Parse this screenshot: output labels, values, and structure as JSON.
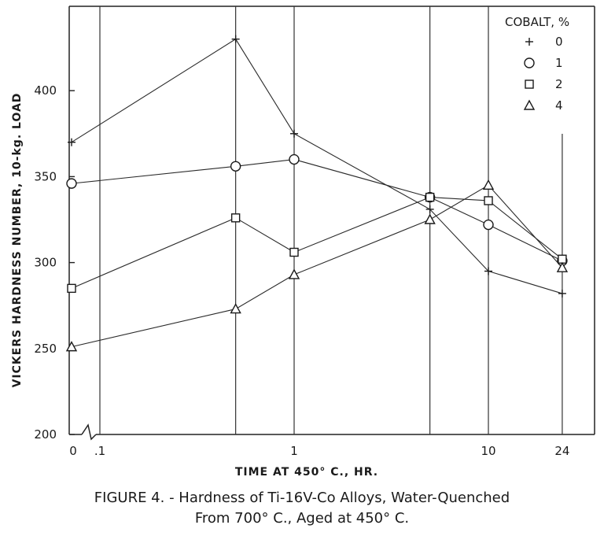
{
  "chart_data": {
    "type": "line",
    "xlabel": "TIME AT 450° C., HR.",
    "ylabel": "VICKERS HARDNESS NUMBER, 10-kg. LOAD",
    "x_scale": "log",
    "x_ticks": [
      {
        "value": 0,
        "label": "0"
      },
      {
        "value": 0.1,
        "label": ".1"
      },
      {
        "value": 1,
        "label": "1"
      },
      {
        "value": 10,
        "label": "10"
      },
      {
        "value": 24,
        "label": "24"
      }
    ],
    "x_gridlines": [
      0.1,
      0.5,
      1,
      5,
      10,
      24
    ],
    "y_ticks": [
      200,
      250,
      300,
      350,
      400
    ],
    "ylim": [
      200,
      450
    ],
    "legend_title": "COBALT, %",
    "legend_position": "top-right",
    "series": [
      {
        "name": "0",
        "marker": "plus",
        "x": [
          0,
          0.5,
          1,
          5,
          10,
          24
        ],
        "y": [
          370,
          430,
          375,
          331,
          295,
          282
        ]
      },
      {
        "name": "1",
        "marker": "circle",
        "x": [
          0,
          0.5,
          1,
          5,
          10,
          24
        ],
        "y": [
          346,
          356,
          360,
          338,
          322,
          301
        ]
      },
      {
        "name": "2",
        "marker": "square",
        "x": [
          0,
          0.5,
          1,
          5,
          10,
          24
        ],
        "y": [
          285,
          326,
          306,
          338,
          336,
          302
        ]
      },
      {
        "name": "4",
        "marker": "triangle",
        "x": [
          0,
          0.5,
          1,
          5,
          10,
          24
        ],
        "y": [
          251,
          273,
          293,
          325,
          345,
          297
        ]
      }
    ]
  },
  "caption": {
    "line1": "FIGURE 4. - Hardness of Ti-16V-Co Alloys, Water-Quenched",
    "line2": "From 700° C., Aged at 450° C."
  }
}
